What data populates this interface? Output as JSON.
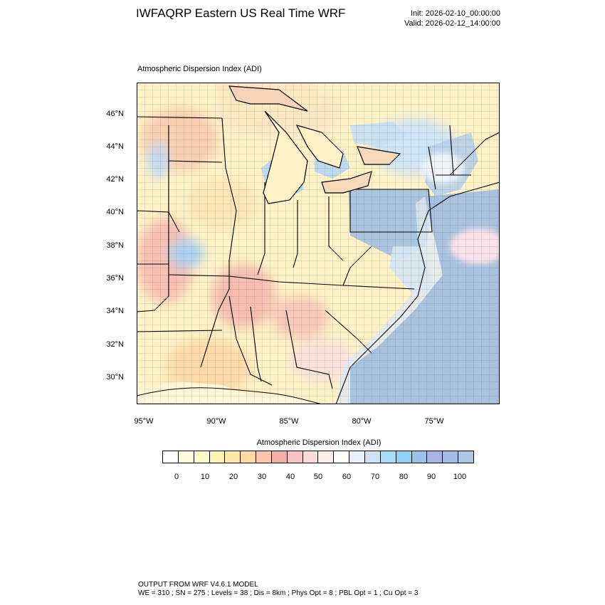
{
  "header": {
    "title": "IWFAQRP Eastern US Real Time WRF",
    "init": "Init: 2026-02-10_00:00:00",
    "valid": "Valid: 2026-02-12_14:00:00"
  },
  "plot": {
    "label": "Atmospheric Dispersion Index   (ADI)",
    "lat_ticks": [
      "46°N",
      "44°N",
      "42°N",
      "40°N",
      "38°N",
      "36°N",
      "34°N",
      "32°N",
      "30°N"
    ],
    "lon_ticks": [
      "95°W",
      "90°W",
      "85°W",
      "80°W",
      "75°W"
    ]
  },
  "colorbar": {
    "title": "Atmospheric Dispersion Index  (ADI)",
    "colors": [
      "#ffffff",
      "#fffde0",
      "#fff8c8",
      "#fff3b0",
      "#ffe8a8",
      "#ffd9a0",
      "#f8c8a8",
      "#f4aea8",
      "#f6c4c0",
      "#f9dcda",
      "#fbecea",
      "#ffffff",
      "#e8f0fb",
      "#cde3f7",
      "#a9dcf6",
      "#8fd0f4",
      "#9cc2ea",
      "#a6b5e3",
      "#a4bde6",
      "#aac6e0"
    ],
    "ticks": [
      "0",
      "10",
      "20",
      "30",
      "40",
      "50",
      "60",
      "70",
      "80",
      "90",
      "100"
    ]
  },
  "footer": {
    "line1": "OUTPUT FROM WRF V4.6.1 MODEL",
    "line2": "WE = 310 ; SN = 275 ; Levels = 38 ; Dis = 8km ; Phys Opt = 8 ; PBL Opt = 1 ; Cu Opt = 3"
  }
}
